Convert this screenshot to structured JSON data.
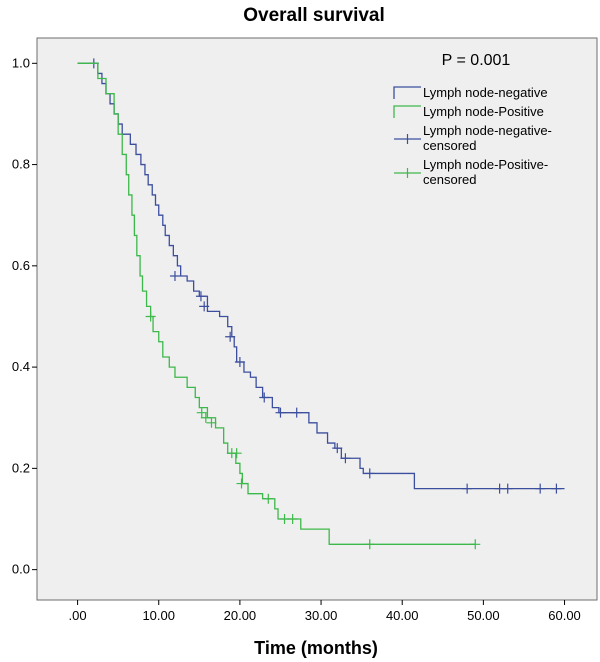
{
  "chart_data": {
    "type": "line",
    "subtype": "kaplan-meier-step",
    "title": "Overall survival",
    "xlabel": "Time (months)",
    "ylabel": "",
    "xlim": [
      -5,
      64
    ],
    "ylim": [
      -0.06,
      1.05
    ],
    "xticks": [
      0,
      10,
      20,
      30,
      40,
      50,
      60
    ],
    "xtick_labels": [
      ".00",
      "10.00",
      "20.00",
      "30.00",
      "40.00",
      "50.00",
      "60.00"
    ],
    "yticks": [
      0.0,
      0.2,
      0.4,
      0.6,
      0.8,
      1.0
    ],
    "ytick_labels": [
      "0.0",
      "0.2",
      "0.4",
      "0.6",
      "0.8",
      "1.0"
    ],
    "grid": false,
    "legend_position": "top-right",
    "annotation": "P = 0.001",
    "background": "#efefef",
    "legend": [
      {
        "label": "Lymph node-negative",
        "color": "#3c4f9e",
        "marker": "step"
      },
      {
        "label": "Lymph node-Positive",
        "color": "#3db84a",
        "marker": "step"
      },
      {
        "label": "Lymph node-negative-\ncensored",
        "color": "#3c4f9e",
        "marker": "plus"
      },
      {
        "label": "Lymph node-Positive-\ncensored",
        "color": "#3db84a",
        "marker": "plus"
      }
    ],
    "series": [
      {
        "name": "Lymph node-negative",
        "color": "#3c4f9e",
        "steps": [
          [
            0,
            1.0
          ],
          [
            2.5,
            0.98
          ],
          [
            3.0,
            0.96
          ],
          [
            3.5,
            0.94
          ],
          [
            4.0,
            0.92
          ],
          [
            4.5,
            0.9
          ],
          [
            5.0,
            0.88
          ],
          [
            5.5,
            0.86
          ],
          [
            6.5,
            0.84
          ],
          [
            7.2,
            0.82
          ],
          [
            7.8,
            0.8
          ],
          [
            8.3,
            0.78
          ],
          [
            8.7,
            0.76
          ],
          [
            9.2,
            0.74
          ],
          [
            9.6,
            0.72
          ],
          [
            10.0,
            0.7
          ],
          [
            10.5,
            0.68
          ],
          [
            10.8,
            0.66
          ],
          [
            11.3,
            0.64
          ],
          [
            11.8,
            0.62
          ],
          [
            12.3,
            0.6
          ],
          [
            12.7,
            0.58
          ],
          [
            13.5,
            0.57
          ],
          [
            14.3,
            0.55
          ],
          [
            15.0,
            0.54
          ],
          [
            16.0,
            0.51
          ],
          [
            17.5,
            0.5
          ],
          [
            18.5,
            0.48
          ],
          [
            19.0,
            0.46
          ],
          [
            19.3,
            0.44
          ],
          [
            19.6,
            0.41
          ],
          [
            20.5,
            0.39
          ],
          [
            21.3,
            0.38
          ],
          [
            22.0,
            0.36
          ],
          [
            22.8,
            0.34
          ],
          [
            24.0,
            0.32
          ],
          [
            24.8,
            0.31
          ],
          [
            28.5,
            0.29
          ],
          [
            29.5,
            0.27
          ],
          [
            30.8,
            0.25
          ],
          [
            31.7,
            0.24
          ],
          [
            32.5,
            0.22
          ],
          [
            34.8,
            0.2
          ],
          [
            35.2,
            0.19
          ],
          [
            41.5,
            0.16
          ],
          [
            60.0,
            0.16
          ]
        ],
        "censored": [
          [
            2.0,
            1.0
          ],
          [
            12.0,
            0.58
          ],
          [
            15.2,
            0.54
          ],
          [
            15.6,
            0.52
          ],
          [
            18.8,
            0.46
          ],
          [
            20.0,
            0.41
          ],
          [
            23.0,
            0.34
          ],
          [
            25.0,
            0.31
          ],
          [
            27.0,
            0.31
          ],
          [
            32.0,
            0.24
          ],
          [
            33.0,
            0.22
          ],
          [
            36.0,
            0.19
          ],
          [
            48.0,
            0.16
          ],
          [
            52.0,
            0.16
          ],
          [
            53.0,
            0.16
          ],
          [
            57.0,
            0.16
          ],
          [
            59.0,
            0.16
          ]
        ]
      },
      {
        "name": "Lymph node-Positive",
        "color": "#3db84a",
        "steps": [
          [
            0,
            1.0
          ],
          [
            2.5,
            0.97
          ],
          [
            3.5,
            0.94
          ],
          [
            4.5,
            0.9
          ],
          [
            5.0,
            0.86
          ],
          [
            5.5,
            0.82
          ],
          [
            6.0,
            0.78
          ],
          [
            6.3,
            0.74
          ],
          [
            6.7,
            0.7
          ],
          [
            7.0,
            0.66
          ],
          [
            7.3,
            0.62
          ],
          [
            7.7,
            0.58
          ],
          [
            8.0,
            0.55
          ],
          [
            8.5,
            0.52
          ],
          [
            9.0,
            0.5
          ],
          [
            9.3,
            0.47
          ],
          [
            10.0,
            0.45
          ],
          [
            10.5,
            0.42
          ],
          [
            11.3,
            0.4
          ],
          [
            12.0,
            0.38
          ],
          [
            13.5,
            0.36
          ],
          [
            14.5,
            0.34
          ],
          [
            15.0,
            0.32
          ],
          [
            16.0,
            0.3
          ],
          [
            17.0,
            0.28
          ],
          [
            18.0,
            0.25
          ],
          [
            18.5,
            0.23
          ],
          [
            19.5,
            0.21
          ],
          [
            20.0,
            0.19
          ],
          [
            20.3,
            0.17
          ],
          [
            21.0,
            0.15
          ],
          [
            22.8,
            0.14
          ],
          [
            24.3,
            0.12
          ],
          [
            24.7,
            0.1
          ],
          [
            27.5,
            0.08
          ],
          [
            31.0,
            0.05
          ],
          [
            49.0,
            0.05
          ]
        ],
        "censored": [
          [
            9.0,
            0.5
          ],
          [
            15.3,
            0.31
          ],
          [
            15.8,
            0.3
          ],
          [
            16.5,
            0.29
          ],
          [
            19.0,
            0.23
          ],
          [
            19.6,
            0.23
          ],
          [
            20.2,
            0.17
          ],
          [
            23.5,
            0.14
          ],
          [
            25.5,
            0.1
          ],
          [
            26.5,
            0.1
          ],
          [
            36.0,
            0.05
          ],
          [
            49.0,
            0.05
          ]
        ]
      }
    ]
  }
}
